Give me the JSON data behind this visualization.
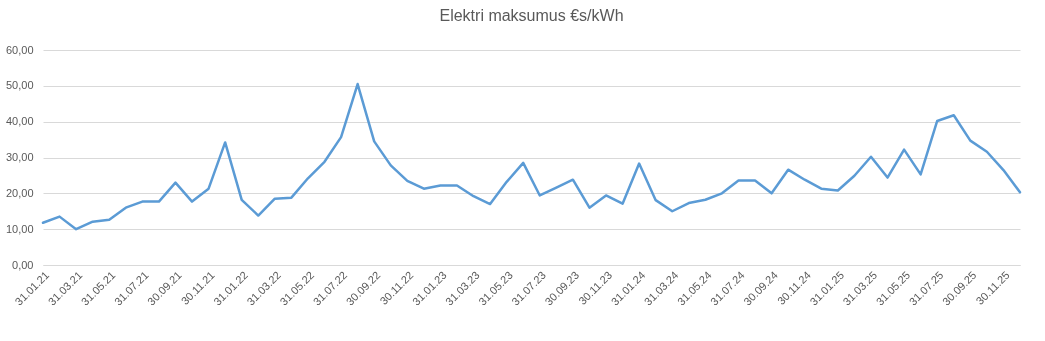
{
  "chart_data": {
    "type": "line",
    "title": "Elektri maksumus €s/kWh",
    "categories": [
      "31.01.21",
      null,
      "31.03.21",
      null,
      "31.05.21",
      null,
      "31.07.21",
      null,
      "30.09.21",
      null,
      "30.11.21",
      null,
      "31.01.22",
      null,
      "31.03.22",
      null,
      "31.05.22",
      null,
      "31.07.22",
      null,
      "30.09.22",
      null,
      "30.11.22",
      null,
      "31.01.23",
      null,
      "31.03.23",
      null,
      "31.05.23",
      null,
      "31.07.23",
      null,
      "30.09.23",
      null,
      "30.11.23",
      null,
      "31.01.24",
      null,
      "31.03.24",
      null,
      "31.05.24",
      null,
      "31.07.24",
      null,
      "30.09.24",
      null,
      "30.11.24",
      null,
      "31.01.25",
      null,
      "31.03.25",
      null,
      "31.05.25",
      null,
      "31.07.25",
      null,
      "30.09.25",
      null,
      "30.11.25",
      null
    ],
    "series": [
      {
        "color": "#5b9bd5",
        "values": [
          11.8,
          13.5,
          10.0,
          12.1,
          12.6,
          16.0,
          17.7,
          17.7,
          23.0,
          17.7,
          21.3,
          34.2,
          18.2,
          13.8,
          18.5,
          18.8,
          24.2,
          28.8,
          35.7,
          50.5,
          34.5,
          27.8,
          23.5,
          21.3,
          22.2,
          22.2,
          19.2,
          17.0,
          23.2,
          28.5,
          19.4,
          21.6,
          23.8,
          16.0,
          19.4,
          17.1,
          28.3,
          18.1,
          15.0,
          17.3,
          18.2,
          20.0,
          23.6,
          23.6,
          20.0,
          26.6,
          23.8,
          21.3,
          20.8,
          24.9,
          30.2,
          24.4,
          32.2,
          25.3,
          40.2,
          41.8,
          34.7,
          31.6,
          26.5,
          20.3
        ]
      }
    ],
    "ylim": [
      0,
      60
    ],
    "yticks": [
      {
        "value": 0,
        "label": "0,00"
      },
      {
        "value": 10,
        "label": "10,00"
      },
      {
        "value": 20,
        "label": "20,00"
      },
      {
        "value": 30,
        "label": "30,00"
      },
      {
        "value": 40,
        "label": "40,00"
      },
      {
        "value": 50,
        "label": "50,00"
      },
      {
        "value": 60,
        "label": "60,00"
      }
    ],
    "grid": "y",
    "marker": "none",
    "line_style": "solid"
  }
}
